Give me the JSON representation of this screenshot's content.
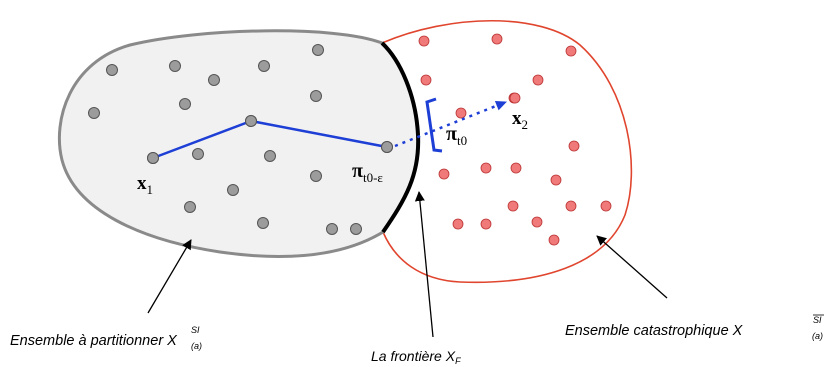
{
  "colors": {
    "left_blob_fill": "#f1f1f1",
    "left_blob_stroke": "#8a8a8a",
    "right_blob_fill": "#ffffff",
    "right_blob_stroke": "#e0452e",
    "gray_point": "#9c9c9c",
    "red_point": "#f07a7a",
    "path": "#1e3fd6",
    "frontier": "#000000"
  },
  "labels": {
    "x1_base": "x",
    "x1_sub": "1",
    "x2_base": "x",
    "x2_sub": "2",
    "pi_t0_eps_base": "π",
    "pi_t0_eps_sub": "t0-ε",
    "pi_t0_base": "π",
    "pi_t0_sub": "t0",
    "set_partition_text": "Ensemble à partitionner X",
    "set_partition_sup": "SI",
    "set_partition_sub": "(a)",
    "frontier_text": "La frontière X",
    "frontier_sub": "F",
    "set_catastrophic_text": "Ensemble catastrophique X",
    "set_catastrophic_sup": "SI",
    "set_catastrophic_sub": "(a)"
  }
}
